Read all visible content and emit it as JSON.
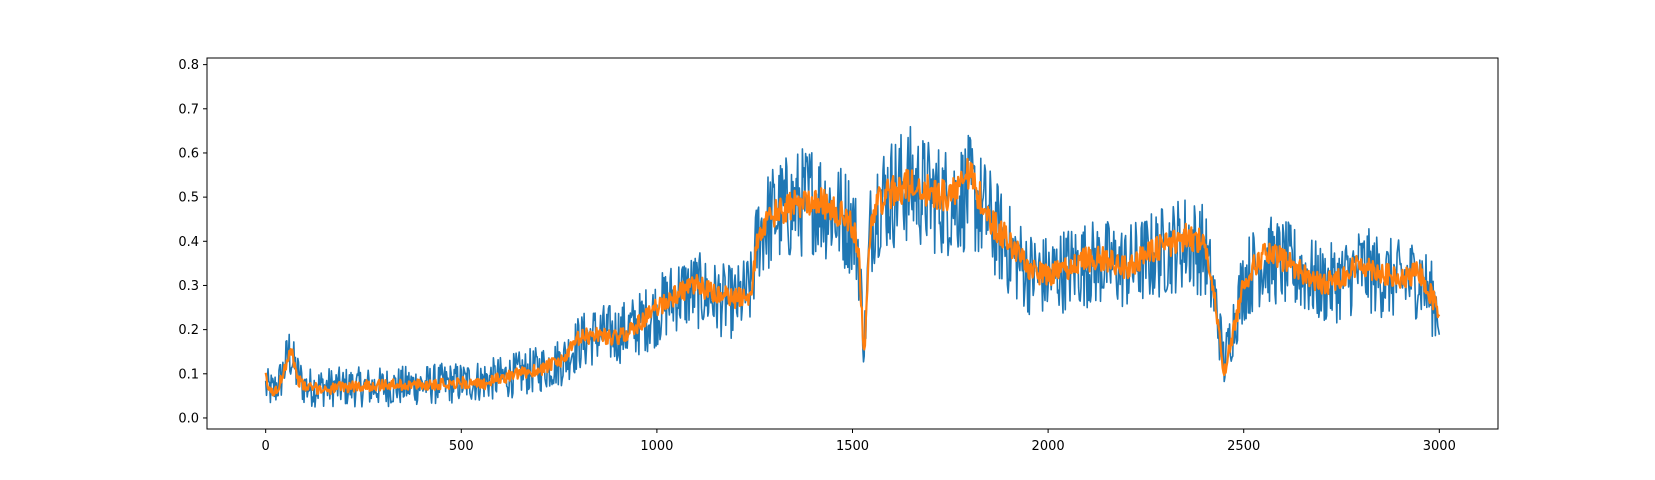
{
  "chart_data": {
    "type": "line",
    "title": "",
    "xlabel": "",
    "ylabel": "",
    "xlim": [
      -150,
      3150
    ],
    "ylim": [
      -0.025,
      0.815
    ],
    "grid": false,
    "legend": "none",
    "x_ticks": [
      0,
      500,
      1000,
      1500,
      2000,
      2500,
      3000
    ],
    "x_tick_labels": [
      "0",
      "500",
      "1000",
      "1500",
      "2000",
      "2500",
      "3000"
    ],
    "y_ticks": [
      0.0,
      0.1,
      0.2,
      0.3,
      0.4,
      0.5,
      0.6,
      0.7,
      0.8
    ],
    "y_tick_labels": [
      "0.0",
      "0.1",
      "0.2",
      "0.3",
      "0.4",
      "0.5",
      "0.6",
      "0.7",
      "0.8"
    ],
    "series": [
      {
        "color": "#1f77b4",
        "noise": 0.09,
        "x": [
          0,
          20,
          40,
          60,
          80,
          100,
          150,
          200,
          300,
          400,
          500,
          600,
          700,
          760,
          800,
          850,
          900,
          950,
          1000,
          1050,
          1100,
          1150,
          1200,
          1240,
          1260,
          1300,
          1350,
          1400,
          1450,
          1500,
          1515,
          1530,
          1545,
          1560,
          1600,
          1650,
          1700,
          1750,
          1800,
          1850,
          1900,
          1950,
          2000,
          2050,
          2100,
          2150,
          2200,
          2250,
          2300,
          2350,
          2400,
          2430,
          2450,
          2470,
          2500,
          2550,
          2600,
          2650,
          2700,
          2750,
          2800,
          2850,
          2900,
          2950,
          3000
        ],
        "y": [
          0.07,
          0.06,
          0.09,
          0.15,
          0.1,
          0.07,
          0.07,
          0.07,
          0.07,
          0.075,
          0.08,
          0.09,
          0.11,
          0.13,
          0.17,
          0.19,
          0.19,
          0.21,
          0.24,
          0.28,
          0.29,
          0.27,
          0.26,
          0.29,
          0.42,
          0.46,
          0.48,
          0.5,
          0.47,
          0.44,
          0.38,
          0.16,
          0.42,
          0.49,
          0.51,
          0.53,
          0.5,
          0.49,
          0.51,
          0.45,
          0.38,
          0.33,
          0.32,
          0.34,
          0.35,
          0.35,
          0.34,
          0.36,
          0.38,
          0.4,
          0.38,
          0.25,
          0.12,
          0.2,
          0.31,
          0.36,
          0.35,
          0.33,
          0.3,
          0.31,
          0.34,
          0.32,
          0.31,
          0.32,
          0.24
        ]
      },
      {
        "color": "#ff7f0e",
        "noise": 0.025,
        "x": [
          0,
          10,
          30,
          50,
          65,
          80,
          100,
          150,
          200,
          300,
          400,
          500,
          550,
          600,
          700,
          760,
          800,
          850,
          900,
          950,
          1000,
          1050,
          1100,
          1150,
          1200,
          1240,
          1260,
          1300,
          1350,
          1400,
          1450,
          1500,
          1515,
          1530,
          1545,
          1560,
          1600,
          1650,
          1700,
          1750,
          1790,
          1850,
          1900,
          1950,
          2000,
          2050,
          2100,
          2150,
          2200,
          2250,
          2300,
          2350,
          2400,
          2430,
          2450,
          2470,
          2500,
          2550,
          2600,
          2650,
          2700,
          2750,
          2800,
          2850,
          2900,
          2950,
          3000
        ],
        "y": [
          0.09,
          0.06,
          0.06,
          0.12,
          0.16,
          0.09,
          0.07,
          0.065,
          0.07,
          0.075,
          0.075,
          0.08,
          0.075,
          0.09,
          0.11,
          0.13,
          0.18,
          0.19,
          0.18,
          0.21,
          0.25,
          0.28,
          0.3,
          0.28,
          0.27,
          0.28,
          0.42,
          0.46,
          0.48,
          0.5,
          0.47,
          0.44,
          0.38,
          0.14,
          0.42,
          0.49,
          0.51,
          0.53,
          0.51,
          0.5,
          0.57,
          0.45,
          0.4,
          0.34,
          0.32,
          0.34,
          0.36,
          0.36,
          0.34,
          0.37,
          0.39,
          0.41,
          0.4,
          0.24,
          0.1,
          0.18,
          0.31,
          0.37,
          0.36,
          0.33,
          0.3,
          0.32,
          0.35,
          0.33,
          0.31,
          0.33,
          0.24
        ]
      }
    ]
  }
}
